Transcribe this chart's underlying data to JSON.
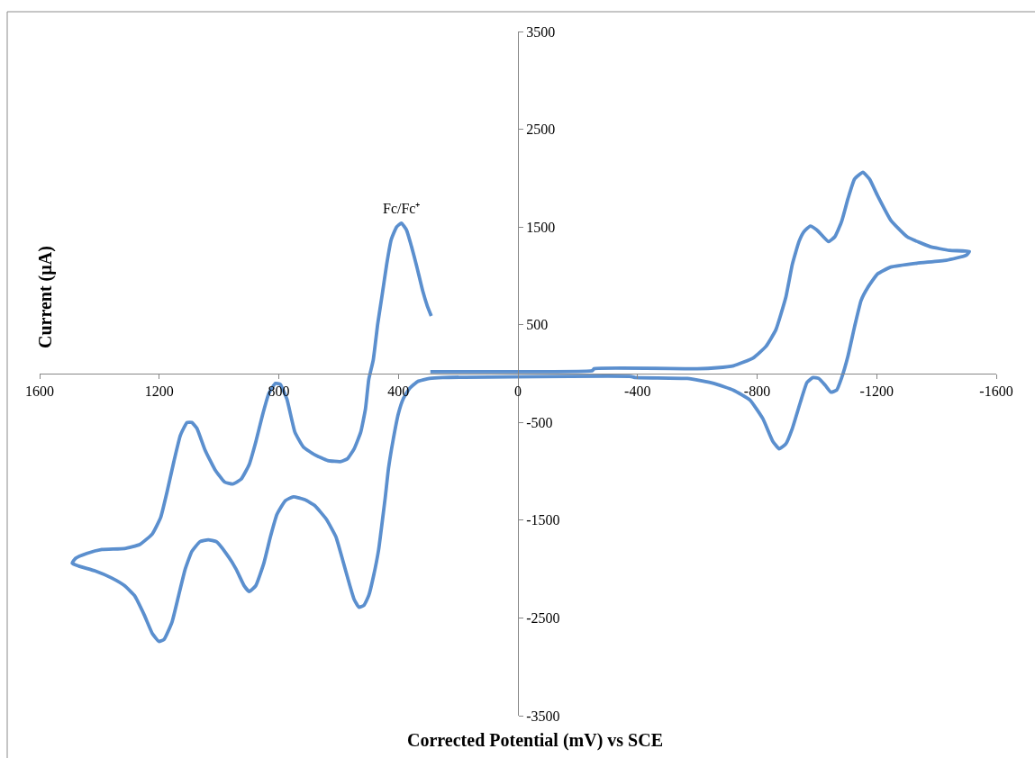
{
  "chart_data": {
    "type": "line",
    "xlabel": "Corrected Potential (mV) vs SCE",
    "ylabel": "Current (µA)",
    "annotations": [
      {
        "text": "Fc/Fc⁺",
        "x": 390,
        "y": 1540
      }
    ],
    "xlim": [
      1600,
      -1600
    ],
    "ylim": [
      -3500,
      3500
    ],
    "xticks": [
      1600,
      1200,
      800,
      400,
      0,
      -400,
      -800,
      -1200,
      -1600
    ],
    "yticks": [
      3500,
      2500,
      1500,
      500,
      -500,
      -1500,
      -2500,
      -3500
    ],
    "grid": false,
    "series": [
      {
        "color": "#5b8fce",
        "x": [
          293,
          100,
          -249,
          -255,
          -600,
          -666,
          -721,
          -787,
          -830,
          -863,
          -896,
          -918,
          -940,
          -956,
          -978,
          -1000,
          -1039,
          -1060,
          -1082,
          -1104,
          -1126,
          -1154,
          -1176,
          -1203,
          -1247,
          -1302,
          -1378,
          -1444,
          -1510,
          -1499,
          -1433,
          -1335,
          -1247,
          -1203,
          -1170,
          -1148,
          -1126,
          -1104,
          -1082,
          -1066,
          -1047,
          -1028,
          -1006,
          -987,
          -967,
          -945,
          -918,
          -896,
          -874,
          -852,
          -819,
          -776,
          -721,
          -655,
          -567,
          -392,
          -380,
          252,
          296,
          335,
          362,
          384,
          400,
          417,
          433,
          444,
          455,
          466,
          483,
          499,
          515,
          532,
          548,
          565,
          587,
          609,
          641,
          680,
          713,
          751,
          778,
          806,
          828,
          850,
          877,
          899,
          916,
          943,
          976,
          1009,
          1036,
          1064,
          1091,
          1113,
          1135,
          1157,
          1184,
          1201,
          1223,
          1250,
          1283,
          1316,
          1360,
          1414,
          1469,
          1491,
          1480,
          1442,
          1392,
          1316,
          1266,
          1223,
          1195,
          1173,
          1151,
          1129,
          1107,
          1091,
          1074,
          1047,
          1014,
          981,
          954,
          926,
          899,
          877,
          855,
          833,
          811,
          795,
          773,
          746,
          718,
          680,
          636,
          592,
          570,
          548,
          526,
          510,
          499,
          484,
          469,
          454,
          439,
          424,
          406,
          390,
          373,
          356,
          338,
          318,
          303,
          290
        ],
        "values": [
          20,
          20,
          30,
          50,
          50,
          60,
          80,
          160,
          280,
          450,
          780,
          1120,
          1350,
          1450,
          1510,
          1470,
          1350,
          1400,
          1550,
          1790,
          1990,
          2060,
          1990,
          1820,
          1570,
          1400,
          1300,
          1260,
          1250,
          1210,
          1160,
          1130,
          1090,
          1020,
          880,
          750,
          480,
          180,
          -50,
          -170,
          -190,
          -120,
          -50,
          -40,
          -90,
          -290,
          -560,
          -720,
          -770,
          -690,
          -460,
          -270,
          -170,
          -100,
          -50,
          -40,
          -30,
          -40,
          -50,
          -80,
          -150,
          -260,
          -410,
          -670,
          -970,
          -1270,
          -1540,
          -1800,
          -2070,
          -2270,
          -2370,
          -2390,
          -2310,
          -2140,
          -1900,
          -1670,
          -1490,
          -1350,
          -1290,
          -1260,
          -1300,
          -1440,
          -1670,
          -1940,
          -2170,
          -2230,
          -2170,
          -2000,
          -1840,
          -1720,
          -1700,
          -1720,
          -1820,
          -2000,
          -2270,
          -2540,
          -2720,
          -2740,
          -2660,
          -2470,
          -2270,
          -2170,
          -2090,
          -2020,
          -1970,
          -1940,
          -1890,
          -1840,
          -1800,
          -1790,
          -1750,
          -1640,
          -1470,
          -1200,
          -900,
          -630,
          -500,
          -500,
          -560,
          -780,
          -980,
          -1110,
          -1130,
          -1080,
          -930,
          -700,
          -430,
          -200,
          -100,
          -110,
          -260,
          -600,
          -750,
          -830,
          -890,
          -900,
          -870,
          -770,
          -600,
          -360,
          -60,
          140,
          510,
          810,
          1120,
          1370,
          1500,
          1540,
          1470,
          1300,
          1090,
          840,
          690,
          590
        ]
      }
    ]
  }
}
